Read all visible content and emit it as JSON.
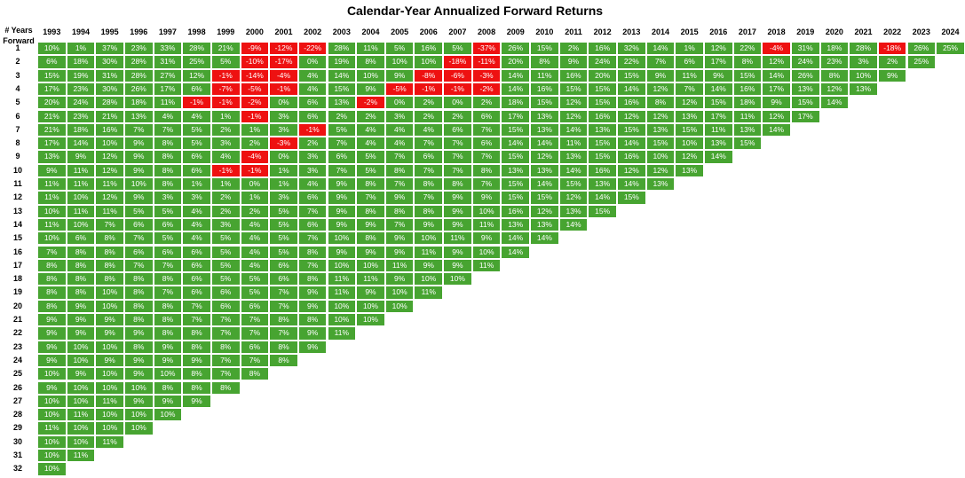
{
  "chart_data": {
    "type": "table",
    "title": "Calendar-Year Annualized Forward Returns",
    "row_header_label": [
      "# Years",
      "Forward"
    ],
    "colors": {
      "positive": "#47a431",
      "negative": "#ee1111",
      "text": "#ffffff"
    },
    "columns": [
      "1993",
      "1994",
      "1995",
      "1996",
      "1997",
      "1998",
      "1999",
      "2000",
      "2001",
      "2002",
      "2003",
      "2004",
      "2005",
      "2006",
      "2007",
      "2008",
      "2009",
      "2010",
      "2011",
      "2012",
      "2013",
      "2014",
      "2015",
      "2016",
      "2017",
      "2018",
      "2019",
      "2020",
      "2021",
      "2022",
      "2023",
      "2024"
    ],
    "rows": [
      {
        "label": "1",
        "values": [
          "10%",
          "1%",
          "37%",
          "23%",
          "33%",
          "28%",
          "21%",
          "-9%",
          "-12%",
          "-22%",
          "28%",
          "11%",
          "5%",
          "16%",
          "5%",
          "-37%",
          "26%",
          "15%",
          "2%",
          "16%",
          "32%",
          "14%",
          "1%",
          "12%",
          "22%",
          "-4%",
          "31%",
          "18%",
          "28%",
          "-18%",
          "26%",
          "25%"
        ]
      },
      {
        "label": "2",
        "values": [
          "6%",
          "18%",
          "30%",
          "28%",
          "31%",
          "25%",
          "5%",
          "-10%",
          "-17%",
          "0%",
          "19%",
          "8%",
          "10%",
          "10%",
          "-18%",
          "-11%",
          "20%",
          "8%",
          "9%",
          "24%",
          "22%",
          "7%",
          "6%",
          "17%",
          "8%",
          "12%",
          "24%",
          "23%",
          "3%",
          "2%",
          "25%"
        ]
      },
      {
        "label": "3",
        "values": [
          "15%",
          "19%",
          "31%",
          "28%",
          "27%",
          "12%",
          "-1%",
          "-14%",
          "-4%",
          "4%",
          "14%",
          "10%",
          "9%",
          "-8%",
          "-6%",
          "-3%",
          "14%",
          "11%",
          "16%",
          "20%",
          "15%",
          "9%",
          "11%",
          "9%",
          "15%",
          "14%",
          "26%",
          "8%",
          "10%",
          "9%"
        ]
      },
      {
        "label": "4",
        "values": [
          "17%",
          "23%",
          "30%",
          "26%",
          "17%",
          "6%",
          "-7%",
          "-5%",
          "-1%",
          "4%",
          "15%",
          "9%",
          "-5%",
          "-1%",
          "-1%",
          "-2%",
          "14%",
          "16%",
          "15%",
          "15%",
          "14%",
          "12%",
          "7%",
          "14%",
          "16%",
          "17%",
          "13%",
          "12%",
          "13%"
        ]
      },
      {
        "label": "5",
        "values": [
          "20%",
          "24%",
          "28%",
          "18%",
          "11%",
          "-1%",
          "-1%",
          "-2%",
          "0%",
          "6%",
          "13%",
          "-2%",
          "0%",
          "2%",
          "0%",
          "2%",
          "18%",
          "15%",
          "12%",
          "15%",
          "16%",
          "8%",
          "12%",
          "15%",
          "18%",
          "9%",
          "15%",
          "14%"
        ]
      },
      {
        "label": "6",
        "values": [
          "21%",
          "23%",
          "21%",
          "13%",
          "4%",
          "4%",
          "1%",
          "-1%",
          "3%",
          "6%",
          "2%",
          "2%",
          "3%",
          "2%",
          "2%",
          "6%",
          "17%",
          "13%",
          "12%",
          "16%",
          "12%",
          "12%",
          "13%",
          "17%",
          "11%",
          "12%",
          "17%"
        ]
      },
      {
        "label": "7",
        "values": [
          "21%",
          "18%",
          "16%",
          "7%",
          "7%",
          "5%",
          "2%",
          "1%",
          "3%",
          "-1%",
          "5%",
          "4%",
          "4%",
          "4%",
          "6%",
          "7%",
          "15%",
          "13%",
          "14%",
          "13%",
          "15%",
          "13%",
          "15%",
          "11%",
          "13%",
          "14%"
        ]
      },
      {
        "label": "8",
        "values": [
          "17%",
          "14%",
          "10%",
          "9%",
          "8%",
          "5%",
          "3%",
          "2%",
          "-3%",
          "2%",
          "7%",
          "4%",
          "4%",
          "7%",
          "7%",
          "6%",
          "14%",
          "14%",
          "11%",
          "15%",
          "14%",
          "15%",
          "10%",
          "13%",
          "15%"
        ]
      },
      {
        "label": "9",
        "values": [
          "13%",
          "9%",
          "12%",
          "9%",
          "8%",
          "6%",
          "4%",
          "-4%",
          "0%",
          "3%",
          "6%",
          "5%",
          "7%",
          "6%",
          "7%",
          "7%",
          "15%",
          "12%",
          "13%",
          "15%",
          "16%",
          "10%",
          "12%",
          "14%"
        ]
      },
      {
        "label": "10",
        "values": [
          "9%",
          "11%",
          "12%",
          "9%",
          "8%",
          "6%",
          "-1%",
          "-1%",
          "1%",
          "3%",
          "7%",
          "5%",
          "8%",
          "7%",
          "7%",
          "8%",
          "13%",
          "13%",
          "14%",
          "16%",
          "12%",
          "12%",
          "13%"
        ]
      },
      {
        "label": "11",
        "values": [
          "11%",
          "11%",
          "11%",
          "10%",
          "8%",
          "1%",
          "1%",
          "0%",
          "1%",
          "4%",
          "9%",
          "8%",
          "7%",
          "8%",
          "8%",
          "7%",
          "15%",
          "14%",
          "15%",
          "13%",
          "14%",
          "13%"
        ]
      },
      {
        "label": "12",
        "values": [
          "11%",
          "10%",
          "12%",
          "9%",
          "3%",
          "3%",
          "2%",
          "1%",
          "3%",
          "6%",
          "9%",
          "7%",
          "9%",
          "7%",
          "9%",
          "9%",
          "15%",
          "15%",
          "12%",
          "14%",
          "15%"
        ]
      },
      {
        "label": "13",
        "values": [
          "10%",
          "11%",
          "11%",
          "5%",
          "5%",
          "4%",
          "2%",
          "2%",
          "5%",
          "7%",
          "9%",
          "8%",
          "8%",
          "8%",
          "9%",
          "10%",
          "16%",
          "12%",
          "13%",
          "15%"
        ]
      },
      {
        "label": "14",
        "values": [
          "11%",
          "10%",
          "7%",
          "6%",
          "6%",
          "4%",
          "3%",
          "4%",
          "5%",
          "6%",
          "9%",
          "9%",
          "7%",
          "9%",
          "9%",
          "11%",
          "13%",
          "13%",
          "14%"
        ]
      },
      {
        "label": "15",
        "values": [
          "10%",
          "6%",
          "8%",
          "7%",
          "5%",
          "4%",
          "5%",
          "4%",
          "5%",
          "7%",
          "10%",
          "8%",
          "9%",
          "10%",
          "11%",
          "9%",
          "14%",
          "14%"
        ]
      },
      {
        "label": "16",
        "values": [
          "7%",
          "8%",
          "8%",
          "6%",
          "6%",
          "6%",
          "5%",
          "4%",
          "5%",
          "8%",
          "9%",
          "9%",
          "9%",
          "11%",
          "9%",
          "10%",
          "14%"
        ]
      },
      {
        "label": "17",
        "values": [
          "8%",
          "8%",
          "8%",
          "7%",
          "7%",
          "6%",
          "5%",
          "4%",
          "6%",
          "7%",
          "10%",
          "10%",
          "11%",
          "9%",
          "9%",
          "11%"
        ]
      },
      {
        "label": "18",
        "values": [
          "8%",
          "8%",
          "8%",
          "8%",
          "8%",
          "6%",
          "5%",
          "5%",
          "6%",
          "8%",
          "11%",
          "11%",
          "9%",
          "10%",
          "10%"
        ]
      },
      {
        "label": "19",
        "values": [
          "8%",
          "8%",
          "10%",
          "8%",
          "7%",
          "6%",
          "6%",
          "5%",
          "7%",
          "9%",
          "11%",
          "9%",
          "10%",
          "11%"
        ]
      },
      {
        "label": "20",
        "values": [
          "8%",
          "9%",
          "10%",
          "8%",
          "8%",
          "7%",
          "6%",
          "6%",
          "7%",
          "9%",
          "10%",
          "10%",
          "10%"
        ]
      },
      {
        "label": "21",
        "values": [
          "9%",
          "9%",
          "9%",
          "8%",
          "8%",
          "7%",
          "7%",
          "7%",
          "8%",
          "8%",
          "10%",
          "10%"
        ]
      },
      {
        "label": "22",
        "values": [
          "9%",
          "9%",
          "9%",
          "9%",
          "8%",
          "8%",
          "7%",
          "7%",
          "7%",
          "9%",
          "11%"
        ]
      },
      {
        "label": "23",
        "values": [
          "9%",
          "10%",
          "10%",
          "8%",
          "9%",
          "8%",
          "8%",
          "6%",
          "8%",
          "9%"
        ]
      },
      {
        "label": "24",
        "values": [
          "9%",
          "10%",
          "9%",
          "9%",
          "9%",
          "9%",
          "7%",
          "7%",
          "8%"
        ]
      },
      {
        "label": "25",
        "values": [
          "10%",
          "9%",
          "10%",
          "9%",
          "10%",
          "8%",
          "7%",
          "8%"
        ]
      },
      {
        "label": "26",
        "values": [
          "9%",
          "10%",
          "10%",
          "10%",
          "8%",
          "8%",
          "8%"
        ]
      },
      {
        "label": "27",
        "values": [
          "10%",
          "10%",
          "11%",
          "9%",
          "9%",
          "9%"
        ]
      },
      {
        "label": "28",
        "values": [
          "10%",
          "11%",
          "10%",
          "10%",
          "10%"
        ]
      },
      {
        "label": "29",
        "values": [
          "11%",
          "10%",
          "10%",
          "10%"
        ]
      },
      {
        "label": "30",
        "values": [
          "10%",
          "10%",
          "11%"
        ]
      },
      {
        "label": "31",
        "values": [
          "10%",
          "11%"
        ]
      },
      {
        "label": "32",
        "values": [
          "10%"
        ]
      }
    ]
  }
}
